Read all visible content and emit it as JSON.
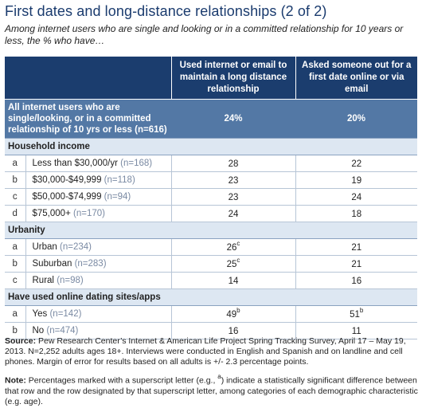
{
  "title": "First dates and long-distance relationships (2 of 2)",
  "subtitle": "Among internet users who are single and looking or in a committed relationship for 10 years or less, the % who have…",
  "columns": [
    "Used internet or email to maintain a long distance relationship",
    "Asked someone out for a first date online or via email"
  ],
  "all_row": {
    "label": "All internet users who are single/looking, or in a committed relationship of 10 yrs or less (n=616)",
    "v1": "24%",
    "v2": "20%"
  },
  "sections": [
    {
      "title": "Household income",
      "rows": [
        {
          "letter": "a",
          "label": "Less than $30,000/yr",
          "n": "(n=168)",
          "v1": "28",
          "v1_sup": "",
          "v2": "22",
          "v2_sup": ""
        },
        {
          "letter": "b",
          "label": "$30,000-$49,999",
          "n": "(n=118)",
          "v1": "23",
          "v1_sup": "",
          "v2": "19",
          "v2_sup": ""
        },
        {
          "letter": "c",
          "label": "$50,000-$74,999",
          "n": "(n=94)",
          "v1": "23",
          "v1_sup": "",
          "v2": "24",
          "v2_sup": ""
        },
        {
          "letter": "d",
          "label": "$75,000+",
          "n": "(n=170)",
          "v1": "24",
          "v1_sup": "",
          "v2": "18",
          "v2_sup": ""
        }
      ]
    },
    {
      "title": "Urbanity",
      "rows": [
        {
          "letter": "a",
          "label": "Urban",
          "n": "(n=234)",
          "v1": "26",
          "v1_sup": "c",
          "v2": "21",
          "v2_sup": ""
        },
        {
          "letter": "b",
          "label": "Suburban",
          "n": "(n=283)",
          "v1": "25",
          "v1_sup": "c",
          "v2": "21",
          "v2_sup": ""
        },
        {
          "letter": "c",
          "label": "Rural",
          "n": "(n=98)",
          "v1": "14",
          "v1_sup": "",
          "v2": "16",
          "v2_sup": ""
        }
      ]
    },
    {
      "title": "Have used online dating sites/apps",
      "rows": [
        {
          "letter": "a",
          "label": "Yes",
          "n": "(n=142)",
          "v1": "49",
          "v1_sup": "b",
          "v2": "51",
          "v2_sup": "b"
        },
        {
          "letter": "b",
          "label": "No",
          "n": "(n=474)",
          "v1": "16",
          "v1_sup": "",
          "v2": "11",
          "v2_sup": ""
        }
      ]
    }
  ],
  "source": {
    "label": "Source:",
    "text": "Pew Research Center’s Internet & American Life Project Spring Tracking Survey, April 17 – May 19, 2013. N=2,252 adults ages 18+. Interviews were conducted in English and Spanish and on landline and cell phones.  Margin of error for results based on all adults is +/- 2.3 percentage points."
  },
  "note": {
    "label": "Note:",
    "text_before": "Percentages marked with a superscript letter (e.g., ",
    "sup": "a",
    "text_after": ") indicate a statistically significant difference between that row and the row designated by that superscript letter, among categories of each demographic characteristic (e.g. age)."
  },
  "colors": {
    "title": "#1a3b6e",
    "header_bg": "#1b3d6e",
    "all_row_bg": "#5378a5",
    "section_bg": "#dde7f2",
    "n_text": "#7a8aa3"
  }
}
